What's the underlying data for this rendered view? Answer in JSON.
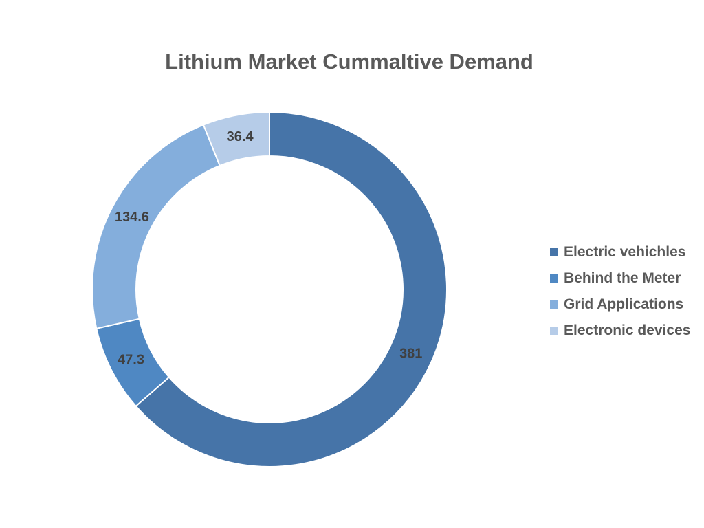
{
  "chart_data": {
    "type": "pie",
    "title": "Lithium Market Cummaltive Demand",
    "categories": [
      "Electric vehichles",
      "Behind the Meter",
      "Grid Applications",
      "Electronic devices"
    ],
    "values": [
      381,
      47.3,
      134.6,
      36.4
    ],
    "labels": [
      "381",
      "47.3",
      "134.6",
      "36.4"
    ],
    "colors": [
      "#4674A8",
      "#4F88C3",
      "#84AEDC",
      "#B6CCE8"
    ],
    "donut": true,
    "legend_position": "right"
  }
}
